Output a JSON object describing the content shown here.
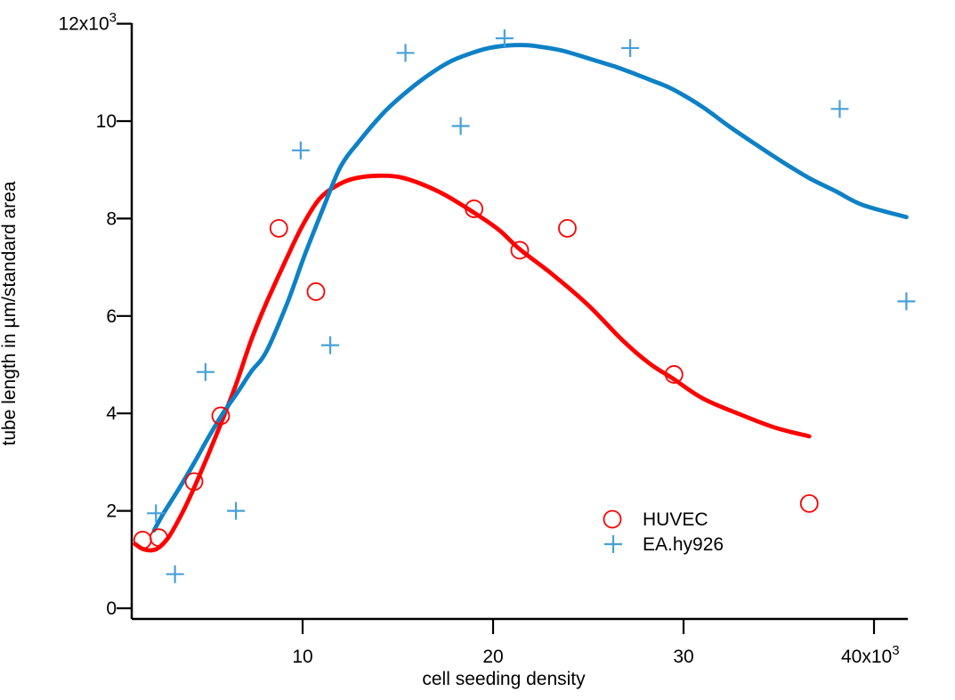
{
  "chart_data": {
    "type": "scatter",
    "title": "",
    "xlabel": "cell seeding density",
    "ylabel": "tube length in µm/standard area",
    "grid": false,
    "legend_position": "inside-right-lower",
    "x_axis": {
      "range": [
        1.0,
        41.8
      ],
      "ticks": [
        10,
        20,
        30,
        40
      ],
      "tick_labels": [
        {
          "text": "10",
          "sup": ""
        },
        {
          "text": "20",
          "sup": ""
        },
        {
          "text": "30",
          "sup": ""
        },
        {
          "text": "40x10",
          "sup": "3"
        }
      ]
    },
    "y_axis": {
      "range": [
        0,
        12
      ],
      "ticks": [
        0,
        2,
        4,
        6,
        8,
        10,
        12
      ],
      "tick_labels": [
        {
          "text": "0",
          "sup": ""
        },
        {
          "text": "2",
          "sup": ""
        },
        {
          "text": "4",
          "sup": ""
        },
        {
          "text": "6",
          "sup": ""
        },
        {
          "text": "8",
          "sup": ""
        },
        {
          "text": "10",
          "sup": ""
        },
        {
          "text": "12x10",
          "sup": "3"
        }
      ]
    },
    "series": [
      {
        "name": "HUVEC",
        "marker": "circle",
        "marker_color": "#ff0000",
        "curve_color": "#ff0000",
        "points": [
          [
            1.6,
            1.4
          ],
          [
            2.45,
            1.45
          ],
          [
            4.3,
            2.6
          ],
          [
            5.7,
            3.95
          ],
          [
            8.75,
            7.8
          ],
          [
            10.7,
            6.5
          ],
          [
            19.0,
            8.2
          ],
          [
            21.4,
            7.35
          ],
          [
            23.9,
            7.8
          ],
          [
            29.5,
            4.8
          ],
          [
            36.6,
            2.15
          ]
        ],
        "fit_curve": [
          [
            1.2,
            1.32
          ],
          [
            1.6,
            1.22
          ],
          [
            2.1,
            1.19
          ],
          [
            2.5,
            1.26
          ],
          [
            3.0,
            1.48
          ],
          [
            3.7,
            1.97
          ],
          [
            4.3,
            2.47
          ],
          [
            5.0,
            3.11
          ],
          [
            5.7,
            3.78
          ],
          [
            6.5,
            4.59
          ],
          [
            7.3,
            5.5
          ],
          [
            8.1,
            6.27
          ],
          [
            9.1,
            7.13
          ],
          [
            10.0,
            7.86
          ],
          [
            10.9,
            8.41
          ],
          [
            11.9,
            8.7
          ],
          [
            12.8,
            8.83
          ],
          [
            14.0,
            8.88
          ],
          [
            15.1,
            8.85
          ],
          [
            16.3,
            8.7
          ],
          [
            17.5,
            8.48
          ],
          [
            19.0,
            8.12
          ],
          [
            20.3,
            7.77
          ],
          [
            21.4,
            7.37
          ],
          [
            23.1,
            6.86
          ],
          [
            25.0,
            6.22
          ],
          [
            26.8,
            5.5
          ],
          [
            28.2,
            5.03
          ],
          [
            29.5,
            4.7
          ],
          [
            31.0,
            4.31
          ],
          [
            32.9,
            3.99
          ],
          [
            34.8,
            3.71
          ],
          [
            36.6,
            3.53
          ]
        ]
      },
      {
        "name": "EA.hy926",
        "marker": "plus",
        "marker_color": "#47a0d9",
        "curve_color": "#0e81c6",
        "points": [
          [
            2.3,
            1.95
          ],
          [
            3.3,
            0.7
          ],
          [
            4.9,
            4.85
          ],
          [
            6.5,
            2.0
          ],
          [
            9.9,
            9.4
          ],
          [
            11.45,
            5.4
          ],
          [
            15.4,
            11.4
          ],
          [
            18.3,
            9.9
          ],
          [
            20.6,
            11.7
          ],
          [
            27.2,
            11.5
          ],
          [
            38.2,
            10.25
          ],
          [
            41.7,
            6.3
          ]
        ],
        "fit_curve": [
          [
            2.2,
            1.6
          ],
          [
            2.7,
            1.95
          ],
          [
            3.5,
            2.45
          ],
          [
            4.3,
            2.98
          ],
          [
            5.0,
            3.47
          ],
          [
            5.8,
            3.99
          ],
          [
            6.6,
            4.44
          ],
          [
            7.3,
            4.86
          ],
          [
            8.1,
            5.27
          ],
          [
            9.2,
            6.27
          ],
          [
            10.1,
            7.24
          ],
          [
            11.1,
            8.23
          ],
          [
            12.0,
            9.07
          ],
          [
            13.0,
            9.6
          ],
          [
            14.2,
            10.15
          ],
          [
            15.1,
            10.48
          ],
          [
            16.1,
            10.8
          ],
          [
            17.0,
            11.05
          ],
          [
            17.9,
            11.25
          ],
          [
            18.9,
            11.4
          ],
          [
            19.8,
            11.5
          ],
          [
            20.7,
            11.55
          ],
          [
            21.7,
            11.56
          ],
          [
            22.6,
            11.52
          ],
          [
            23.6,
            11.45
          ],
          [
            24.5,
            11.35
          ],
          [
            25.4,
            11.24
          ],
          [
            26.4,
            11.12
          ],
          [
            27.3,
            10.99
          ],
          [
            28.3,
            10.84
          ],
          [
            29.4,
            10.66
          ],
          [
            31.0,
            10.29
          ],
          [
            32.4,
            9.89
          ],
          [
            33.8,
            9.52
          ],
          [
            35.2,
            9.16
          ],
          [
            36.6,
            8.83
          ],
          [
            38.0,
            8.56
          ],
          [
            39.4,
            8.28
          ],
          [
            41.7,
            8.03
          ]
        ]
      }
    ],
    "legend": {
      "items": [
        {
          "label": "HUVEC",
          "marker": "circle",
          "color": "#ff0000"
        },
        {
          "label": "EA.hy926",
          "marker": "plus",
          "color": "#47a0d9"
        }
      ]
    },
    "colors": {
      "axis": "#000000",
      "huvec": "#ff0000",
      "eahy926_curve": "#0e81c6",
      "eahy926_marker": "#47a0d9"
    }
  }
}
